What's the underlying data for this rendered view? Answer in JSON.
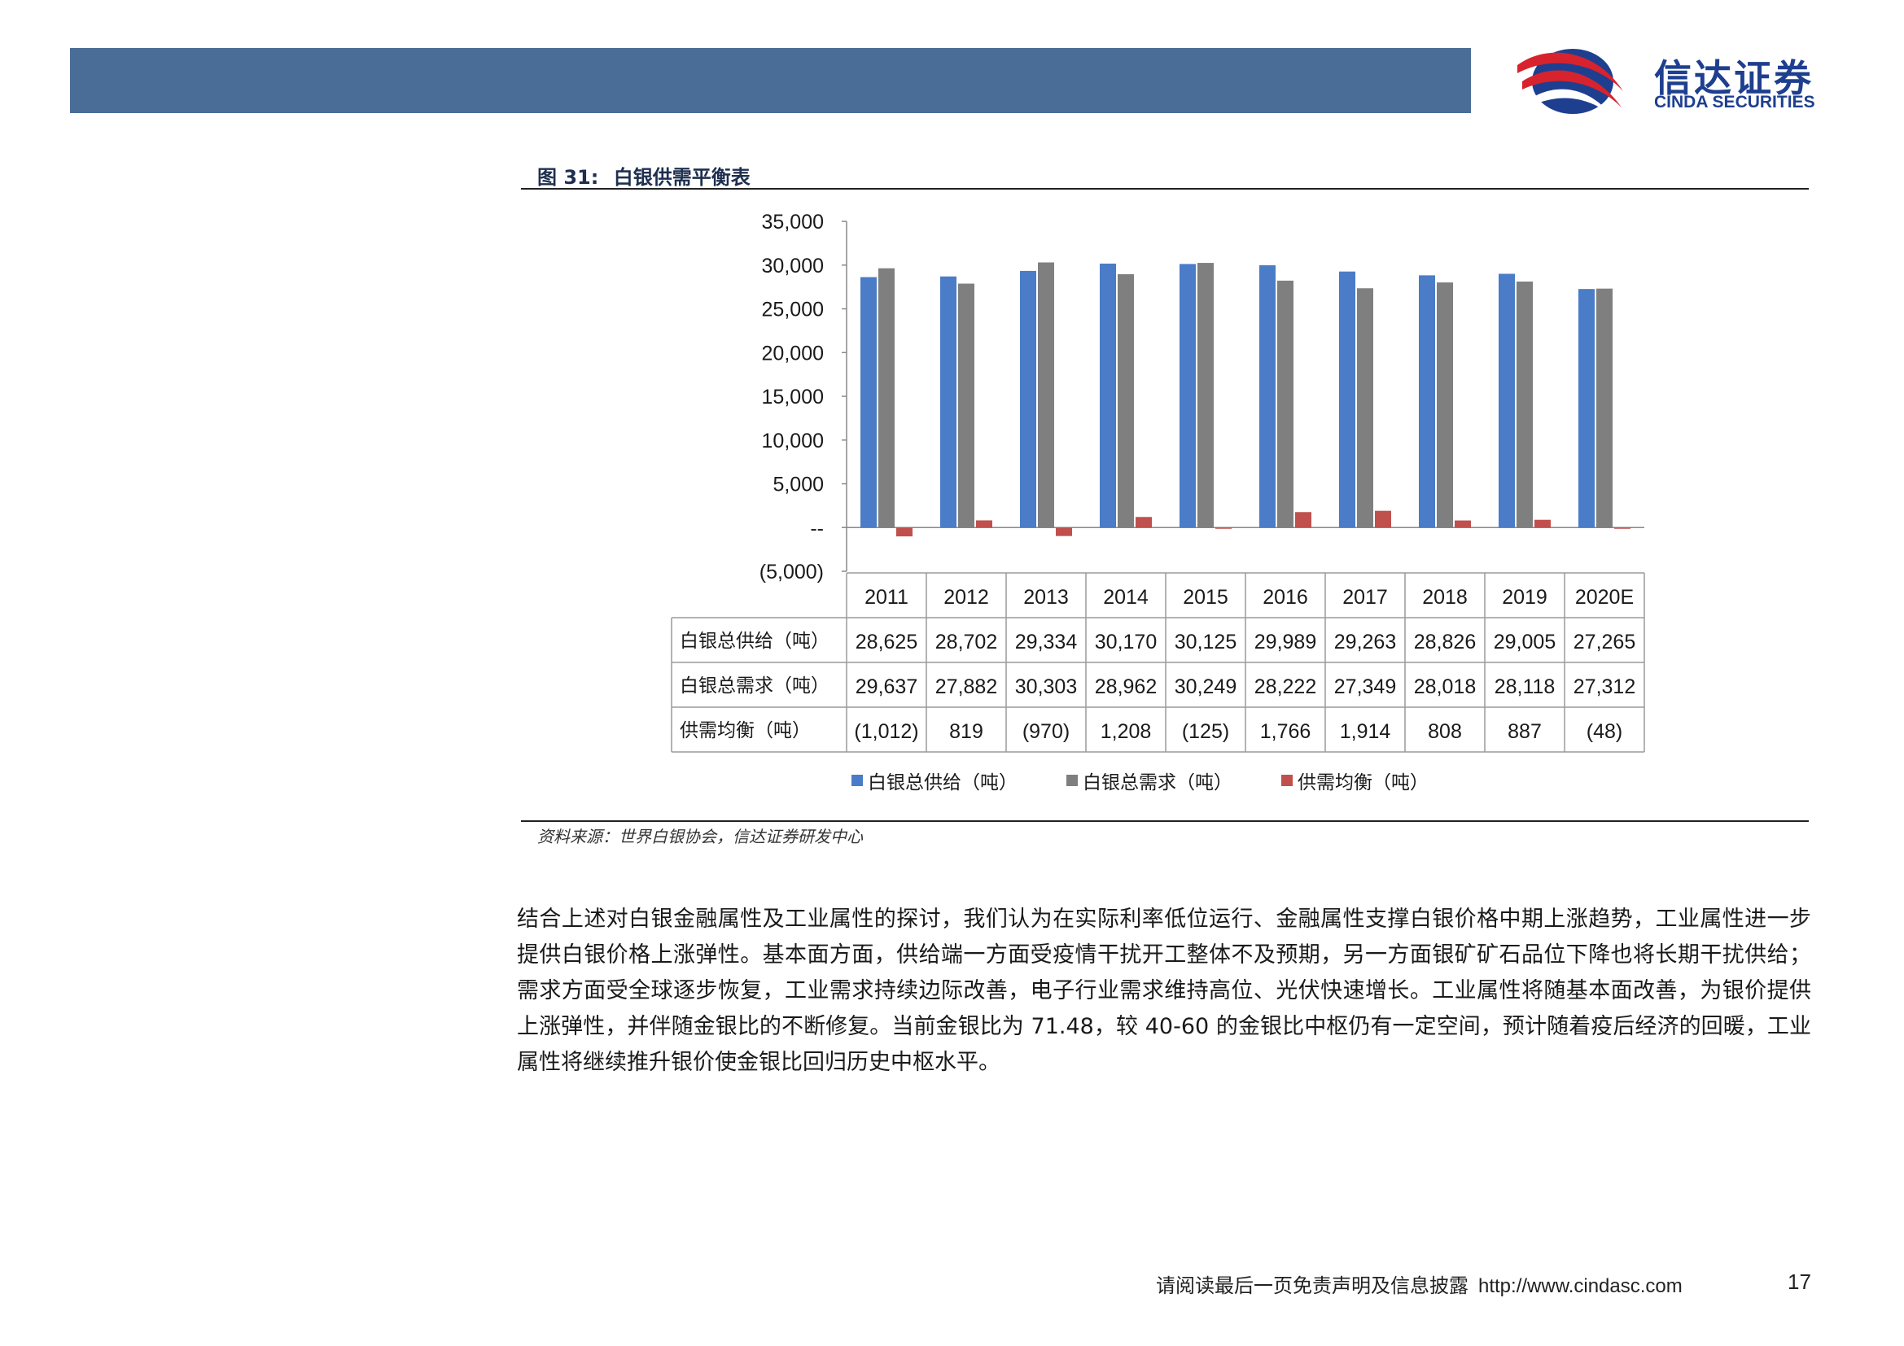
{
  "header": {
    "logo_cn": "信达证券",
    "logo_en": "CINDA SECURITIES",
    "brand_color": "#4a6d97"
  },
  "figure": {
    "label": "图 31:",
    "title": "白银供需平衡表",
    "source": "资料来源：世界白银协会，信达证券研发中心"
  },
  "chart_data": {
    "type": "bar",
    "categories": [
      "2011",
      "2012",
      "2013",
      "2014",
      "2015",
      "2016",
      "2017",
      "2018",
      "2019",
      "2020E"
    ],
    "series": [
      {
        "name": "白银总供给（吨）",
        "color": "#4a7cc7",
        "values": [
          28625,
          28702,
          29334,
          30170,
          30125,
          29989,
          29263,
          28826,
          29005,
          27265
        ],
        "labels": [
          "28,625",
          "28,702",
          "29,334",
          "30,170",
          "30,125",
          "29,989",
          "29,263",
          "28,826",
          "29,005",
          "27,265"
        ]
      },
      {
        "name": "白银总需求（吨）",
        "color": "#7f7f7f",
        "values": [
          29637,
          27882,
          30303,
          28962,
          30249,
          28222,
          27349,
          28018,
          28118,
          27312
        ],
        "labels": [
          "29,637",
          "27,882",
          "30,303",
          "28,962",
          "30,249",
          "28,222",
          "27,349",
          "28,018",
          "28,118",
          "27,312"
        ]
      },
      {
        "name": "供需均衡（吨）",
        "color": "#c0504d",
        "values": [
          -1012,
          819,
          -970,
          1208,
          -125,
          1766,
          1914,
          808,
          887,
          -48
        ],
        "labels": [
          "(1,012)",
          "819",
          "(970)",
          "1,208",
          "(125)",
          "1,766",
          "1,914",
          "808",
          "887",
          "(48)"
        ]
      }
    ],
    "yticks": [
      "35,000",
      "30,000",
      "25,000",
      "20,000",
      "15,000",
      "10,000",
      "5,000",
      "--",
      "(5,000)"
    ],
    "ylim": [
      -5000,
      35000
    ]
  },
  "body": {
    "paragraph": "结合上述对白银金融属性及工业属性的探讨，我们认为在实际利率低位运行、金融属性支撑白银价格中期上涨趋势，工业属性进一步提供白银价格上涨弹性。基本面方面，供给端一方面受疫情干扰开工整体不及预期，另一方面银矿矿石品位下降也将长期干扰供给；需求方面受全球逐步恢复，工业需求持续边际改善，电子行业需求维持高位、光伏快速增长。工业属性将随基本面改善，为银价提供上涨弹性，并伴随金银比的不断修复。当前金银比为 71.48，较 40-60 的金银比中枢仍有一定空间，预计随着疫后经济的回暖，工业属性将继续推升银价使金银比回归历史中枢水平。"
  },
  "footer": {
    "disclaimer": "请阅读最后一页免责声明及信息披露",
    "url": "http://www.cindasc.com",
    "page_number": "17"
  }
}
